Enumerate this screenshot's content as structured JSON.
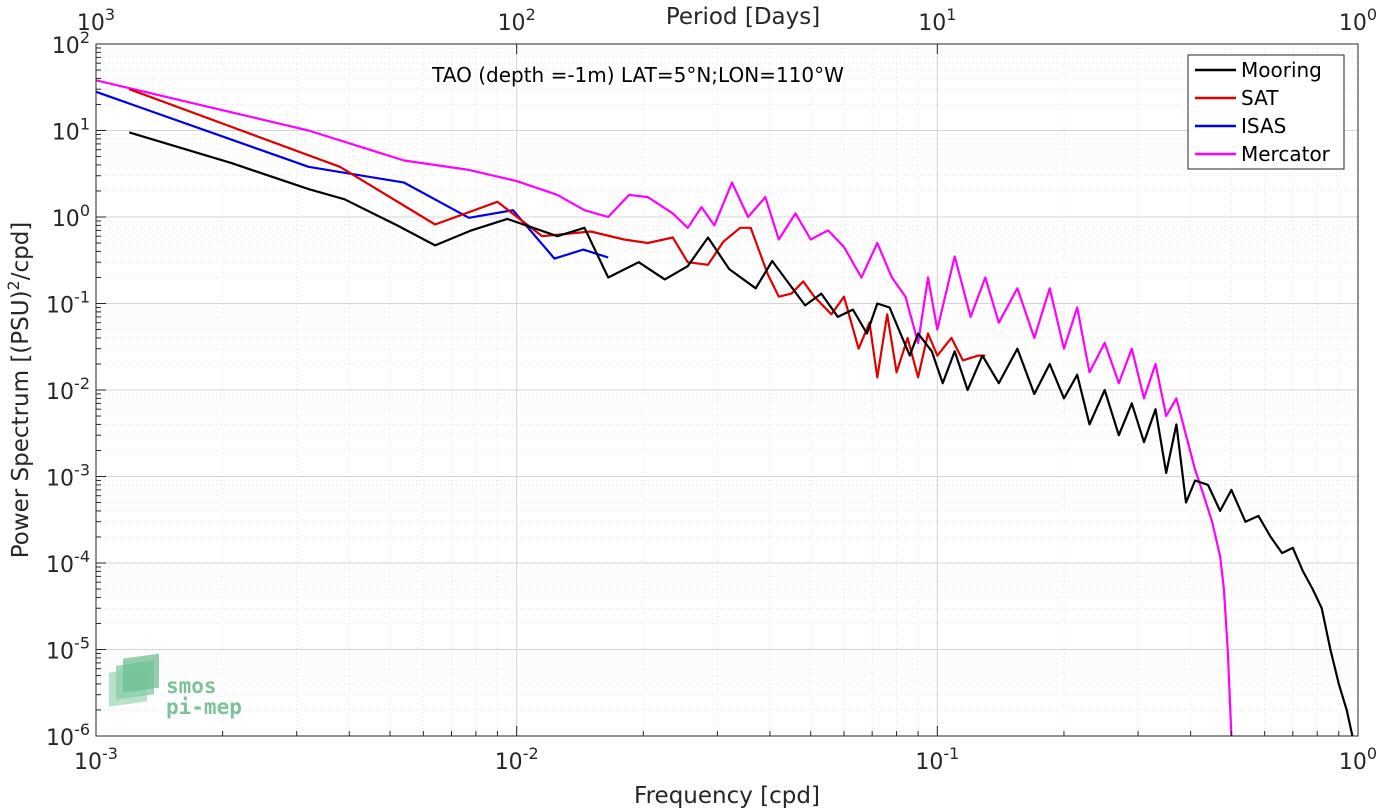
{
  "chart_data": {
    "type": "line",
    "title": "TAO (depth =-1m) LAT=5°N;LON=110°W",
    "xlabel": "Frequency [cpd]",
    "ylabel": "Power Spectrum [(PSU)²/cpd]",
    "ylabel_parts": {
      "before": "Power Spectrum [(PSU)",
      "sup": "2",
      "after": "/cpd]"
    },
    "top_xlabel": "Period [Days]",
    "xscale": "log",
    "yscale": "log",
    "xlim": [
      0.001,
      1
    ],
    "ylim": [
      1e-06,
      100
    ],
    "grid": true,
    "legend_position": "top-right",
    "x_ticks": [
      {
        "value": 0.001,
        "base": "10",
        "exp": "-3"
      },
      {
        "value": 0.01,
        "base": "10",
        "exp": "-2"
      },
      {
        "value": 0.1,
        "base": "10",
        "exp": "-1"
      },
      {
        "value": 1,
        "base": "10",
        "exp": "0"
      }
    ],
    "top_ticks": [
      {
        "value": 1000,
        "base": "10",
        "exp": "3"
      },
      {
        "value": 100,
        "base": "10",
        "exp": "2"
      },
      {
        "value": 10,
        "base": "10",
        "exp": "1"
      },
      {
        "value": 1,
        "base": "10",
        "exp": "0"
      }
    ],
    "y_ticks": [
      {
        "value": 100,
        "base": "10",
        "exp": "2"
      },
      {
        "value": 10,
        "base": "10",
        "exp": "1"
      },
      {
        "value": 1,
        "base": "10",
        "exp": "0"
      },
      {
        "value": 0.1,
        "base": "10",
        "exp": "-1"
      },
      {
        "value": 0.01,
        "base": "10",
        "exp": "-2"
      },
      {
        "value": 0.001,
        "base": "10",
        "exp": "-3"
      },
      {
        "value": 0.0001,
        "base": "10",
        "exp": "-4"
      },
      {
        "value": 1e-05,
        "base": "10",
        "exp": "-5"
      },
      {
        "value": 1e-06,
        "base": "10",
        "exp": "-6"
      }
    ],
    "series": [
      {
        "name": "Mooring",
        "color": "#000000",
        "points": [
          [
            0.0012,
            9.5
          ],
          [
            0.0021,
            4.2
          ],
          [
            0.0032,
            2.1
          ],
          [
            0.0039,
            1.6
          ],
          [
            0.0052,
            0.8
          ],
          [
            0.0064,
            0.47
          ],
          [
            0.0078,
            0.7
          ],
          [
            0.0095,
            0.95
          ],
          [
            0.0125,
            0.6
          ],
          [
            0.0145,
            0.75
          ],
          [
            0.0165,
            0.2
          ],
          [
            0.0195,
            0.3
          ],
          [
            0.0225,
            0.19
          ],
          [
            0.0255,
            0.27
          ],
          [
            0.0285,
            0.58
          ],
          [
            0.032,
            0.25
          ],
          [
            0.037,
            0.15
          ],
          [
            0.0405,
            0.31
          ],
          [
            0.044,
            0.18
          ],
          [
            0.0485,
            0.095
          ],
          [
            0.053,
            0.13
          ],
          [
            0.058,
            0.07
          ],
          [
            0.063,
            0.085
          ],
          [
            0.068,
            0.045
          ],
          [
            0.072,
            0.1
          ],
          [
            0.077,
            0.09
          ],
          [
            0.081,
            0.05
          ],
          [
            0.086,
            0.025
          ],
          [
            0.09,
            0.045
          ],
          [
            0.097,
            0.028
          ],
          [
            0.103,
            0.012
          ],
          [
            0.11,
            0.028
          ],
          [
            0.118,
            0.01
          ],
          [
            0.128,
            0.025
          ],
          [
            0.14,
            0.012
          ],
          [
            0.155,
            0.03
          ],
          [
            0.17,
            0.009
          ],
          [
            0.185,
            0.02
          ],
          [
            0.2,
            0.008
          ],
          [
            0.215,
            0.015
          ],
          [
            0.23,
            0.004
          ],
          [
            0.25,
            0.01
          ],
          [
            0.27,
            0.003
          ],
          [
            0.29,
            0.007
          ],
          [
            0.31,
            0.0025
          ],
          [
            0.33,
            0.006
          ],
          [
            0.35,
            0.0011
          ],
          [
            0.37,
            0.004
          ],
          [
            0.39,
            0.0005
          ],
          [
            0.41,
            0.0009
          ],
          [
            0.44,
            0.0008
          ],
          [
            0.47,
            0.0004
          ],
          [
            0.5,
            0.0007
          ],
          [
            0.54,
            0.0003
          ],
          [
            0.58,
            0.00035
          ],
          [
            0.62,
            0.0002
          ],
          [
            0.66,
            0.00013
          ],
          [
            0.7,
            0.00015
          ],
          [
            0.74,
            8e-05
          ],
          [
            0.78,
            5e-05
          ],
          [
            0.82,
            3e-05
          ],
          [
            0.86,
            1e-05
          ],
          [
            0.9,
            4e-06
          ],
          [
            0.94,
            2e-06
          ],
          [
            0.97,
            1e-06
          ]
        ]
      },
      {
        "name": "SAT",
        "color": "#e00000",
        "points": [
          [
            0.0012,
            30
          ],
          [
            0.0038,
            3.8
          ],
          [
            0.0064,
            0.82
          ],
          [
            0.009,
            1.5
          ],
          [
            0.0115,
            0.6
          ],
          [
            0.015,
            0.68
          ],
          [
            0.018,
            0.55
          ],
          [
            0.0205,
            0.5
          ],
          [
            0.0235,
            0.58
          ],
          [
            0.0255,
            0.3
          ],
          [
            0.0285,
            0.28
          ],
          [
            0.031,
            0.52
          ],
          [
            0.034,
            0.75
          ],
          [
            0.036,
            0.75
          ],
          [
            0.0395,
            0.22
          ],
          [
            0.042,
            0.12
          ],
          [
            0.045,
            0.13
          ],
          [
            0.048,
            0.18
          ],
          [
            0.051,
            0.12
          ],
          [
            0.056,
            0.075
          ],
          [
            0.06,
            0.12
          ],
          [
            0.065,
            0.03
          ],
          [
            0.069,
            0.06
          ],
          [
            0.072,
            0.014
          ],
          [
            0.076,
            0.075
          ],
          [
            0.08,
            0.016
          ],
          [
            0.085,
            0.04
          ],
          [
            0.09,
            0.014
          ],
          [
            0.095,
            0.045
          ],
          [
            0.1,
            0.025
          ],
          [
            0.108,
            0.04
          ],
          [
            0.115,
            0.022
          ],
          [
            0.125,
            0.025
          ],
          [
            0.13,
            0.025
          ]
        ]
      },
      {
        "name": "ISAS",
        "color": "#0000ee",
        "points": [
          [
            0.001,
            28
          ],
          [
            0.0032,
            3.8
          ],
          [
            0.0054,
            2.5
          ],
          [
            0.0077,
            0.98
          ],
          [
            0.0098,
            1.2
          ],
          [
            0.0123,
            0.33
          ],
          [
            0.0144,
            0.42
          ],
          [
            0.0165,
            0.34
          ]
        ]
      },
      {
        "name": "Mercator",
        "color": "#ff00ff",
        "points": [
          [
            0.001,
            38
          ],
          [
            0.0032,
            10
          ],
          [
            0.0054,
            4.5
          ],
          [
            0.0077,
            3.5
          ],
          [
            0.01,
            2.6
          ],
          [
            0.0125,
            1.8
          ],
          [
            0.0145,
            1.2
          ],
          [
            0.0165,
            1.0
          ],
          [
            0.0185,
            1.8
          ],
          [
            0.0205,
            1.7
          ],
          [
            0.0235,
            1.1
          ],
          [
            0.0255,
            0.75
          ],
          [
            0.0275,
            1.3
          ],
          [
            0.0295,
            0.8
          ],
          [
            0.0325,
            2.5
          ],
          [
            0.0355,
            1.0
          ],
          [
            0.039,
            1.7
          ],
          [
            0.042,
            0.55
          ],
          [
            0.046,
            1.1
          ],
          [
            0.05,
            0.55
          ],
          [
            0.055,
            0.7
          ],
          [
            0.06,
            0.45
          ],
          [
            0.066,
            0.2
          ],
          [
            0.072,
            0.5
          ],
          [
            0.078,
            0.2
          ],
          [
            0.084,
            0.12
          ],
          [
            0.09,
            0.035
          ],
          [
            0.095,
            0.2
          ],
          [
            0.1,
            0.05
          ],
          [
            0.11,
            0.35
          ],
          [
            0.12,
            0.07
          ],
          [
            0.13,
            0.2
          ],
          [
            0.14,
            0.06
          ],
          [
            0.155,
            0.15
          ],
          [
            0.17,
            0.04
          ],
          [
            0.185,
            0.15
          ],
          [
            0.2,
            0.03
          ],
          [
            0.215,
            0.09
          ],
          [
            0.23,
            0.016
          ],
          [
            0.25,
            0.035
          ],
          [
            0.27,
            0.012
          ],
          [
            0.29,
            0.03
          ],
          [
            0.31,
            0.008
          ],
          [
            0.33,
            0.02
          ],
          [
            0.35,
            0.005
          ],
          [
            0.37,
            0.008
          ],
          [
            0.39,
            0.003
          ],
          [
            0.41,
            0.0012
          ],
          [
            0.43,
            0.0006
          ],
          [
            0.45,
            0.0003
          ],
          [
            0.47,
            0.00012
          ],
          [
            0.48,
            5e-05
          ],
          [
            0.49,
            1e-05
          ],
          [
            0.5,
            1e-06
          ]
        ]
      }
    ]
  },
  "logo": {
    "line1": "smos",
    "line2": "pi-mep"
  }
}
